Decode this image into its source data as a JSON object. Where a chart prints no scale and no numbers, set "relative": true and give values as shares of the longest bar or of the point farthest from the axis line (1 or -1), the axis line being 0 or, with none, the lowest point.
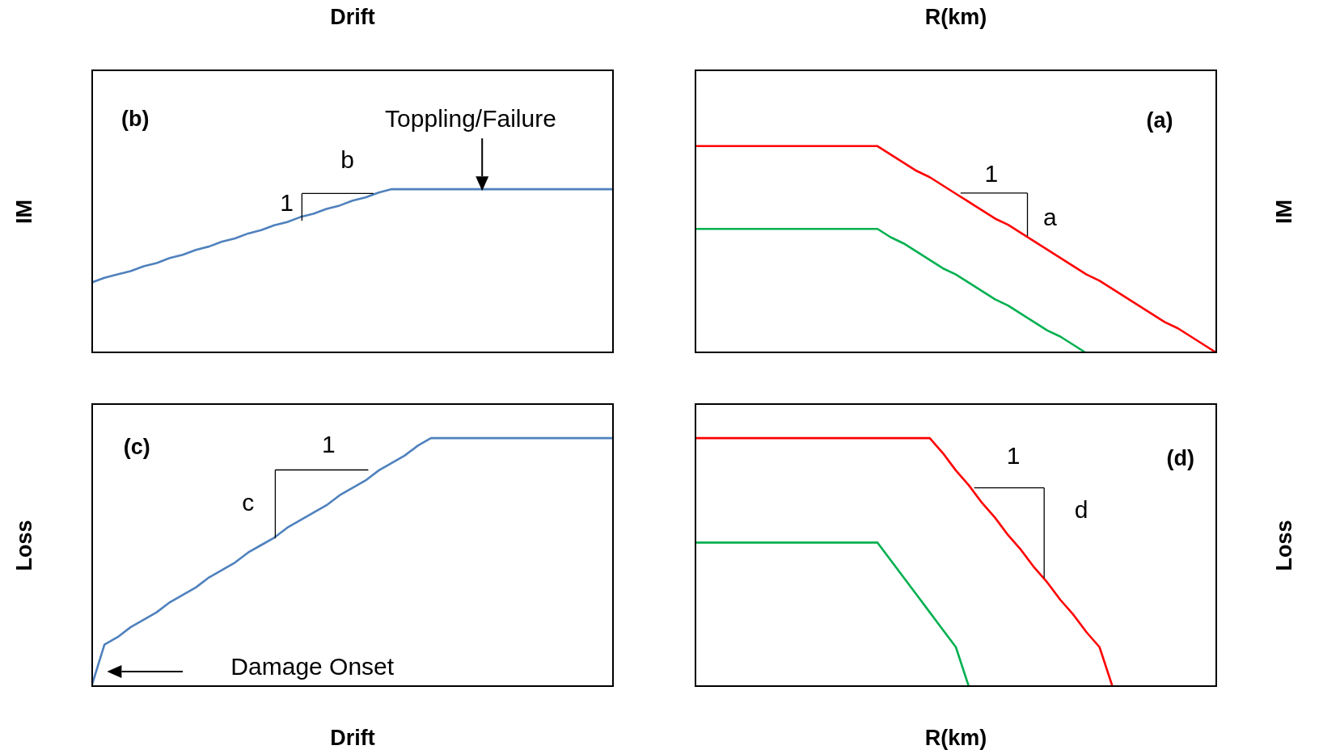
{
  "chart_data": [
    {
      "type": "line",
      "relative": true,
      "xlabel": "Drift",
      "ylabel": "IM",
      "tick_labels": false,
      "categories": [
        null,
        null,
        null,
        null,
        null,
        null,
        null,
        null,
        null,
        null,
        null,
        null,
        null,
        null,
        null,
        null,
        null,
        null,
        null,
        null,
        null,
        null,
        null,
        null,
        null,
        null,
        null,
        null,
        null,
        null,
        null,
        null,
        null,
        null,
        null,
        null,
        null,
        null,
        null,
        null,
        null
      ],
      "series": [
        {
          "color": "#4f81bd",
          "values": [
            0.43,
            0.46,
            0.48,
            0.5,
            0.53,
            0.55,
            0.58,
            0.6,
            0.63,
            0.65,
            0.68,
            0.7,
            0.73,
            0.75,
            0.78,
            0.8,
            0.83,
            0.85,
            0.88,
            0.9,
            0.93,
            0.95,
            0.98,
            1,
            1,
            1,
            1,
            1,
            1,
            1,
            1,
            1,
            1,
            1,
            1,
            1,
            1,
            1,
            1,
            1,
            1
          ]
        }
      ],
      "annotations": [
        "(b)",
        "b",
        "1",
        "Toppling/Failure"
      ]
    },
    {
      "type": "line",
      "relative": true,
      "xlabel": "R(km)",
      "ylabel": "IM",
      "tick_labels": false,
      "categories": [
        null,
        null,
        null,
        null,
        null,
        null,
        null,
        null,
        null,
        null,
        null,
        null,
        null,
        null,
        null,
        null,
        null,
        null,
        null,
        null,
        null,
        null,
        null,
        null,
        null,
        null,
        null,
        null,
        null,
        null,
        null,
        null,
        null,
        null,
        null,
        null,
        null,
        null,
        null,
        null,
        null
      ],
      "series": [
        {
          "color": "#ff0000",
          "values": [
            1,
            1,
            1,
            1,
            1,
            1,
            1,
            1,
            1,
            1,
            1,
            1,
            1,
            1,
            1,
            0.96,
            0.92,
            0.88,
            0.85,
            0.81,
            0.77,
            0.73,
            0.69,
            0.65,
            0.62,
            0.58,
            0.54,
            0.5,
            0.46,
            0.42,
            0.38,
            0.35,
            0.31,
            0.27,
            0.23,
            0.19,
            0.15,
            0.12,
            0.08,
            0.04,
            0
          ]
        },
        {
          "color": "#00b050",
          "values": [
            0.6,
            0.6,
            0.6,
            0.6,
            0.6,
            0.6,
            0.6,
            0.6,
            0.6,
            0.6,
            0.6,
            0.6,
            0.6,
            0.6,
            0.6,
            0.56,
            0.53,
            0.49,
            0.45,
            0.41,
            0.38,
            0.34,
            0.3,
            0.26,
            0.23,
            0.19,
            0.15,
            0.11,
            0.08,
            0.04,
            0,
            null,
            null,
            null,
            null,
            null,
            null,
            null,
            null,
            null,
            null
          ]
        }
      ],
      "annotations": [
        "(a)",
        "1",
        "a"
      ]
    },
    {
      "type": "line",
      "relative": true,
      "xlabel": "Drift",
      "ylabel": "Loss",
      "tick_labels": false,
      "categories": [
        null,
        null,
        null,
        null,
        null,
        null,
        null,
        null,
        null,
        null,
        null,
        null,
        null,
        null,
        null,
        null,
        null,
        null,
        null,
        null,
        null,
        null,
        null,
        null,
        null,
        null,
        null,
        null,
        null,
        null,
        null,
        null,
        null,
        null,
        null,
        null,
        null,
        null,
        null,
        null,
        null
      ],
      "series": [
        {
          "color": "#4f81bd",
          "values": [
            0,
            0.17,
            0.2,
            0.24,
            0.27,
            0.3,
            0.34,
            0.37,
            0.4,
            0.44,
            0.47,
            0.5,
            0.54,
            0.57,
            0.6,
            0.64,
            0.67,
            0.7,
            0.73,
            0.77,
            0.8,
            0.83,
            0.87,
            0.9,
            0.93,
            0.97,
            1,
            1,
            1,
            1,
            1,
            1,
            1,
            1,
            1,
            1,
            1,
            1,
            1,
            1,
            1
          ]
        }
      ],
      "annotations": [
        "(c)",
        "1",
        "c",
        "Damage Onset"
      ]
    },
    {
      "type": "line",
      "relative": true,
      "xlabel": "R(km)",
      "ylabel": "Loss",
      "tick_labels": false,
      "categories": [
        null,
        null,
        null,
        null,
        null,
        null,
        null,
        null,
        null,
        null,
        null,
        null,
        null,
        null,
        null,
        null,
        null,
        null,
        null,
        null,
        null,
        null,
        null,
        null,
        null,
        null,
        null,
        null,
        null,
        null,
        null,
        null,
        null,
        null,
        null,
        null,
        null,
        null,
        null,
        null,
        null
      ],
      "series": [
        {
          "color": "#ff0000",
          "values": [
            1,
            1,
            1,
            1,
            1,
            1,
            1,
            1,
            1,
            1,
            1,
            1,
            1,
            1,
            1,
            1,
            1,
            1,
            1,
            0.94,
            0.87,
            0.81,
            0.74,
            0.68,
            0.61,
            0.55,
            0.48,
            0.42,
            0.35,
            0.29,
            0.22,
            0.16,
            0,
            null,
            null,
            null,
            null,
            null,
            null,
            null,
            null
          ]
        },
        {
          "color": "#00b050",
          "values": [
            0.58,
            0.58,
            0.58,
            0.58,
            0.58,
            0.58,
            0.58,
            0.58,
            0.58,
            0.58,
            0.58,
            0.58,
            0.58,
            0.58,
            0.58,
            0.51,
            0.44,
            0.37,
            0.3,
            0.23,
            0.16,
            0,
            null,
            null,
            null,
            null,
            null,
            null,
            null,
            null,
            null,
            null,
            null,
            null,
            null,
            null,
            null,
            null,
            null,
            null,
            null
          ]
        }
      ],
      "annotations": [
        "(d)",
        "1",
        "d"
      ]
    }
  ]
}
